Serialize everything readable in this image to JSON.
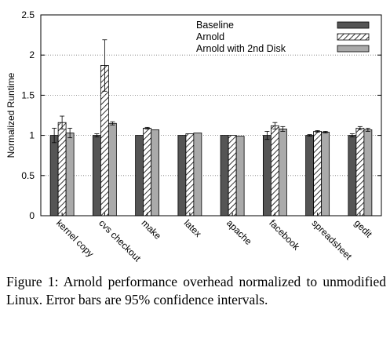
{
  "chart_data": {
    "type": "bar",
    "ylabel": "Normalized Runtime",
    "ylim": [
      0,
      2.5
    ],
    "yticks": [
      "0",
      "0.5",
      "1",
      "1.5",
      "2",
      "2.5"
    ],
    "grid": "horizontal-dotted",
    "legend_position": "top-right",
    "categories": [
      "kernel copy",
      "cvs checkout",
      "make",
      "latex",
      "apache",
      "facebook",
      "spreadsheet",
      "gedit"
    ],
    "series": [
      {
        "name": "Baseline",
        "color": "#555555",
        "pattern": "solid",
        "values": [
          1.0,
          1.0,
          1.0,
          1.0,
          1.0,
          1.0,
          1.0,
          1.0
        ],
        "error": [
          0.09,
          0.02,
          0.0,
          0.0,
          0.0,
          0.05,
          0.01,
          0.02
        ]
      },
      {
        "name": "Arnold",
        "color": "#ffffff",
        "pattern": "diagonal-hatch",
        "values": [
          1.16,
          1.87,
          1.09,
          1.02,
          1.0,
          1.12,
          1.05,
          1.09
        ],
        "error": [
          0.08,
          0.32,
          0.01,
          0.0,
          0.0,
          0.04,
          0.01,
          0.02
        ]
      },
      {
        "name": "Arnold with 2nd Disk",
        "color": "#aaaaaa",
        "pattern": "solid",
        "values": [
          1.03,
          1.15,
          1.07,
          1.03,
          0.99,
          1.08,
          1.04,
          1.07
        ],
        "error": [
          0.06,
          0.02,
          0.0,
          0.0,
          0.0,
          0.03,
          0.01,
          0.02
        ]
      }
    ]
  },
  "caption": "Figure 1: Arnold performance overhead normalized to unmodified Linux. Error bars are 95% confidence intervals."
}
